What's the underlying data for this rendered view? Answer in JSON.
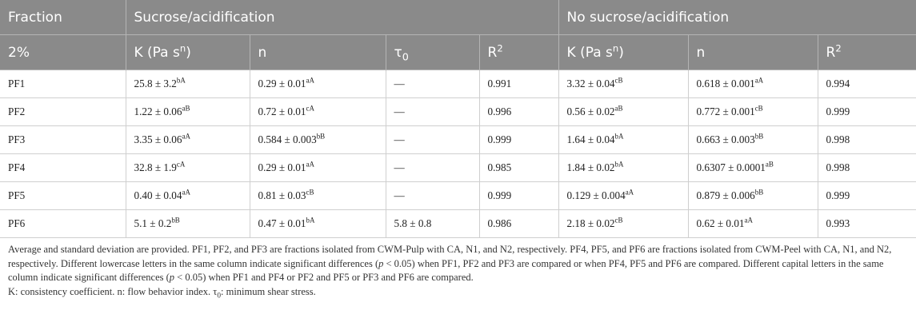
{
  "header": {
    "fraction": "Fraction",
    "group_a": "Sucrose/acidification",
    "group_b": "No sucrose/acidification",
    "conc": "2%",
    "k": "K (Pa s",
    "k_exp": "n",
    "k_close": ")",
    "n": "n",
    "tau": "τ",
    "tau_sub": "0",
    "r": "R",
    "r_exp": "2"
  },
  "rows": [
    {
      "id": "PF1",
      "k_a": "25.8 ± 3.2",
      "k_a_sup": "bA",
      "n_a": "0.29 ± 0.01",
      "n_a_sup": "aA",
      "tau": "—",
      "r_a": "0.991",
      "k_b": "3.32 ± 0.04",
      "k_b_sup": "cB",
      "n_b": "0.618 ± 0.001",
      "n_b_sup": "aA",
      "r_b": "0.994"
    },
    {
      "id": "PF2",
      "k_a": "1.22 ± 0.06",
      "k_a_sup": "aB",
      "n_a": "0.72 ± 0.01",
      "n_a_sup": "cA",
      "tau": "—",
      "r_a": "0.996",
      "k_b": "0.56 ± 0.02",
      "k_b_sup": "aB",
      "n_b": "0.772 ± 0.001",
      "n_b_sup": "cB",
      "r_b": "0.999"
    },
    {
      "id": "PF3",
      "k_a": "3.35 ± 0.06",
      "k_a_sup": "aA",
      "n_a": "0.584 ± 0.003",
      "n_a_sup": "bB",
      "tau": "—",
      "r_a": "0.999",
      "k_b": "1.64 ± 0.04",
      "k_b_sup": "bA",
      "n_b": "0.663 ± 0.003",
      "n_b_sup": "bB",
      "r_b": "0.998"
    },
    {
      "id": "PF4",
      "k_a": "32.8 ± 1.9",
      "k_a_sup": "cA",
      "n_a": "0.29 ± 0.01",
      "n_a_sup": "aA",
      "tau": "—",
      "r_a": "0.985",
      "k_b": "1.84 ± 0.02",
      "k_b_sup": "bA",
      "n_b": "0.6307 ± 0.0001",
      "n_b_sup": "aB",
      "r_b": "0.998"
    },
    {
      "id": "PF5",
      "k_a": "0.40 ± 0.04",
      "k_a_sup": "aA",
      "n_a": "0.81 ± 0.03",
      "n_a_sup": "cB",
      "tau": "—",
      "r_a": "0.999",
      "k_b": "0.129 ± 0.004",
      "k_b_sup": "aA",
      "n_b": "0.879 ± 0.006",
      "n_b_sup": "bB",
      "r_b": "0.999"
    },
    {
      "id": "PF6",
      "k_a": "5.1 ± 0.2",
      "k_a_sup": "bB",
      "n_a": "0.47 ± 0.01",
      "n_a_sup": "bA",
      "tau": "5.8 ± 0.8",
      "r_a": "0.986",
      "k_b": "2.18 ± 0.02",
      "k_b_sup": "cB",
      "n_b": "0.62 ± 0.01",
      "n_b_sup": "aA",
      "r_b": "0.993"
    }
  ],
  "notes": {
    "p1a": "Average and standard deviation are provided. PF1, PF2, and PF3 are fractions isolated from CWM-Pulp with CA, N1, and N2, respectively. PF4, PF5, and PF6 are fractions isolated from CWM-Peel with CA, N1, and N2, respectively. Different lowercase letters in the same column indicate significant differences (",
    "p1_p": "p",
    "p1b": " < 0.05) when PF1, PF2 and PF3 are compared or when PF4, PF5 and PF6 are compared. Different capital letters in the same column indicate significant differences (",
    "p1c": " < 0.05) when PF1 and PF4 or PF2 and PF5 or PF3 and PF6 are compared.",
    "p2a": "K: consistency coefficient. n: flow behavior index. τ",
    "p2_sub": "0",
    "p2b": ": minimum shear stress."
  }
}
